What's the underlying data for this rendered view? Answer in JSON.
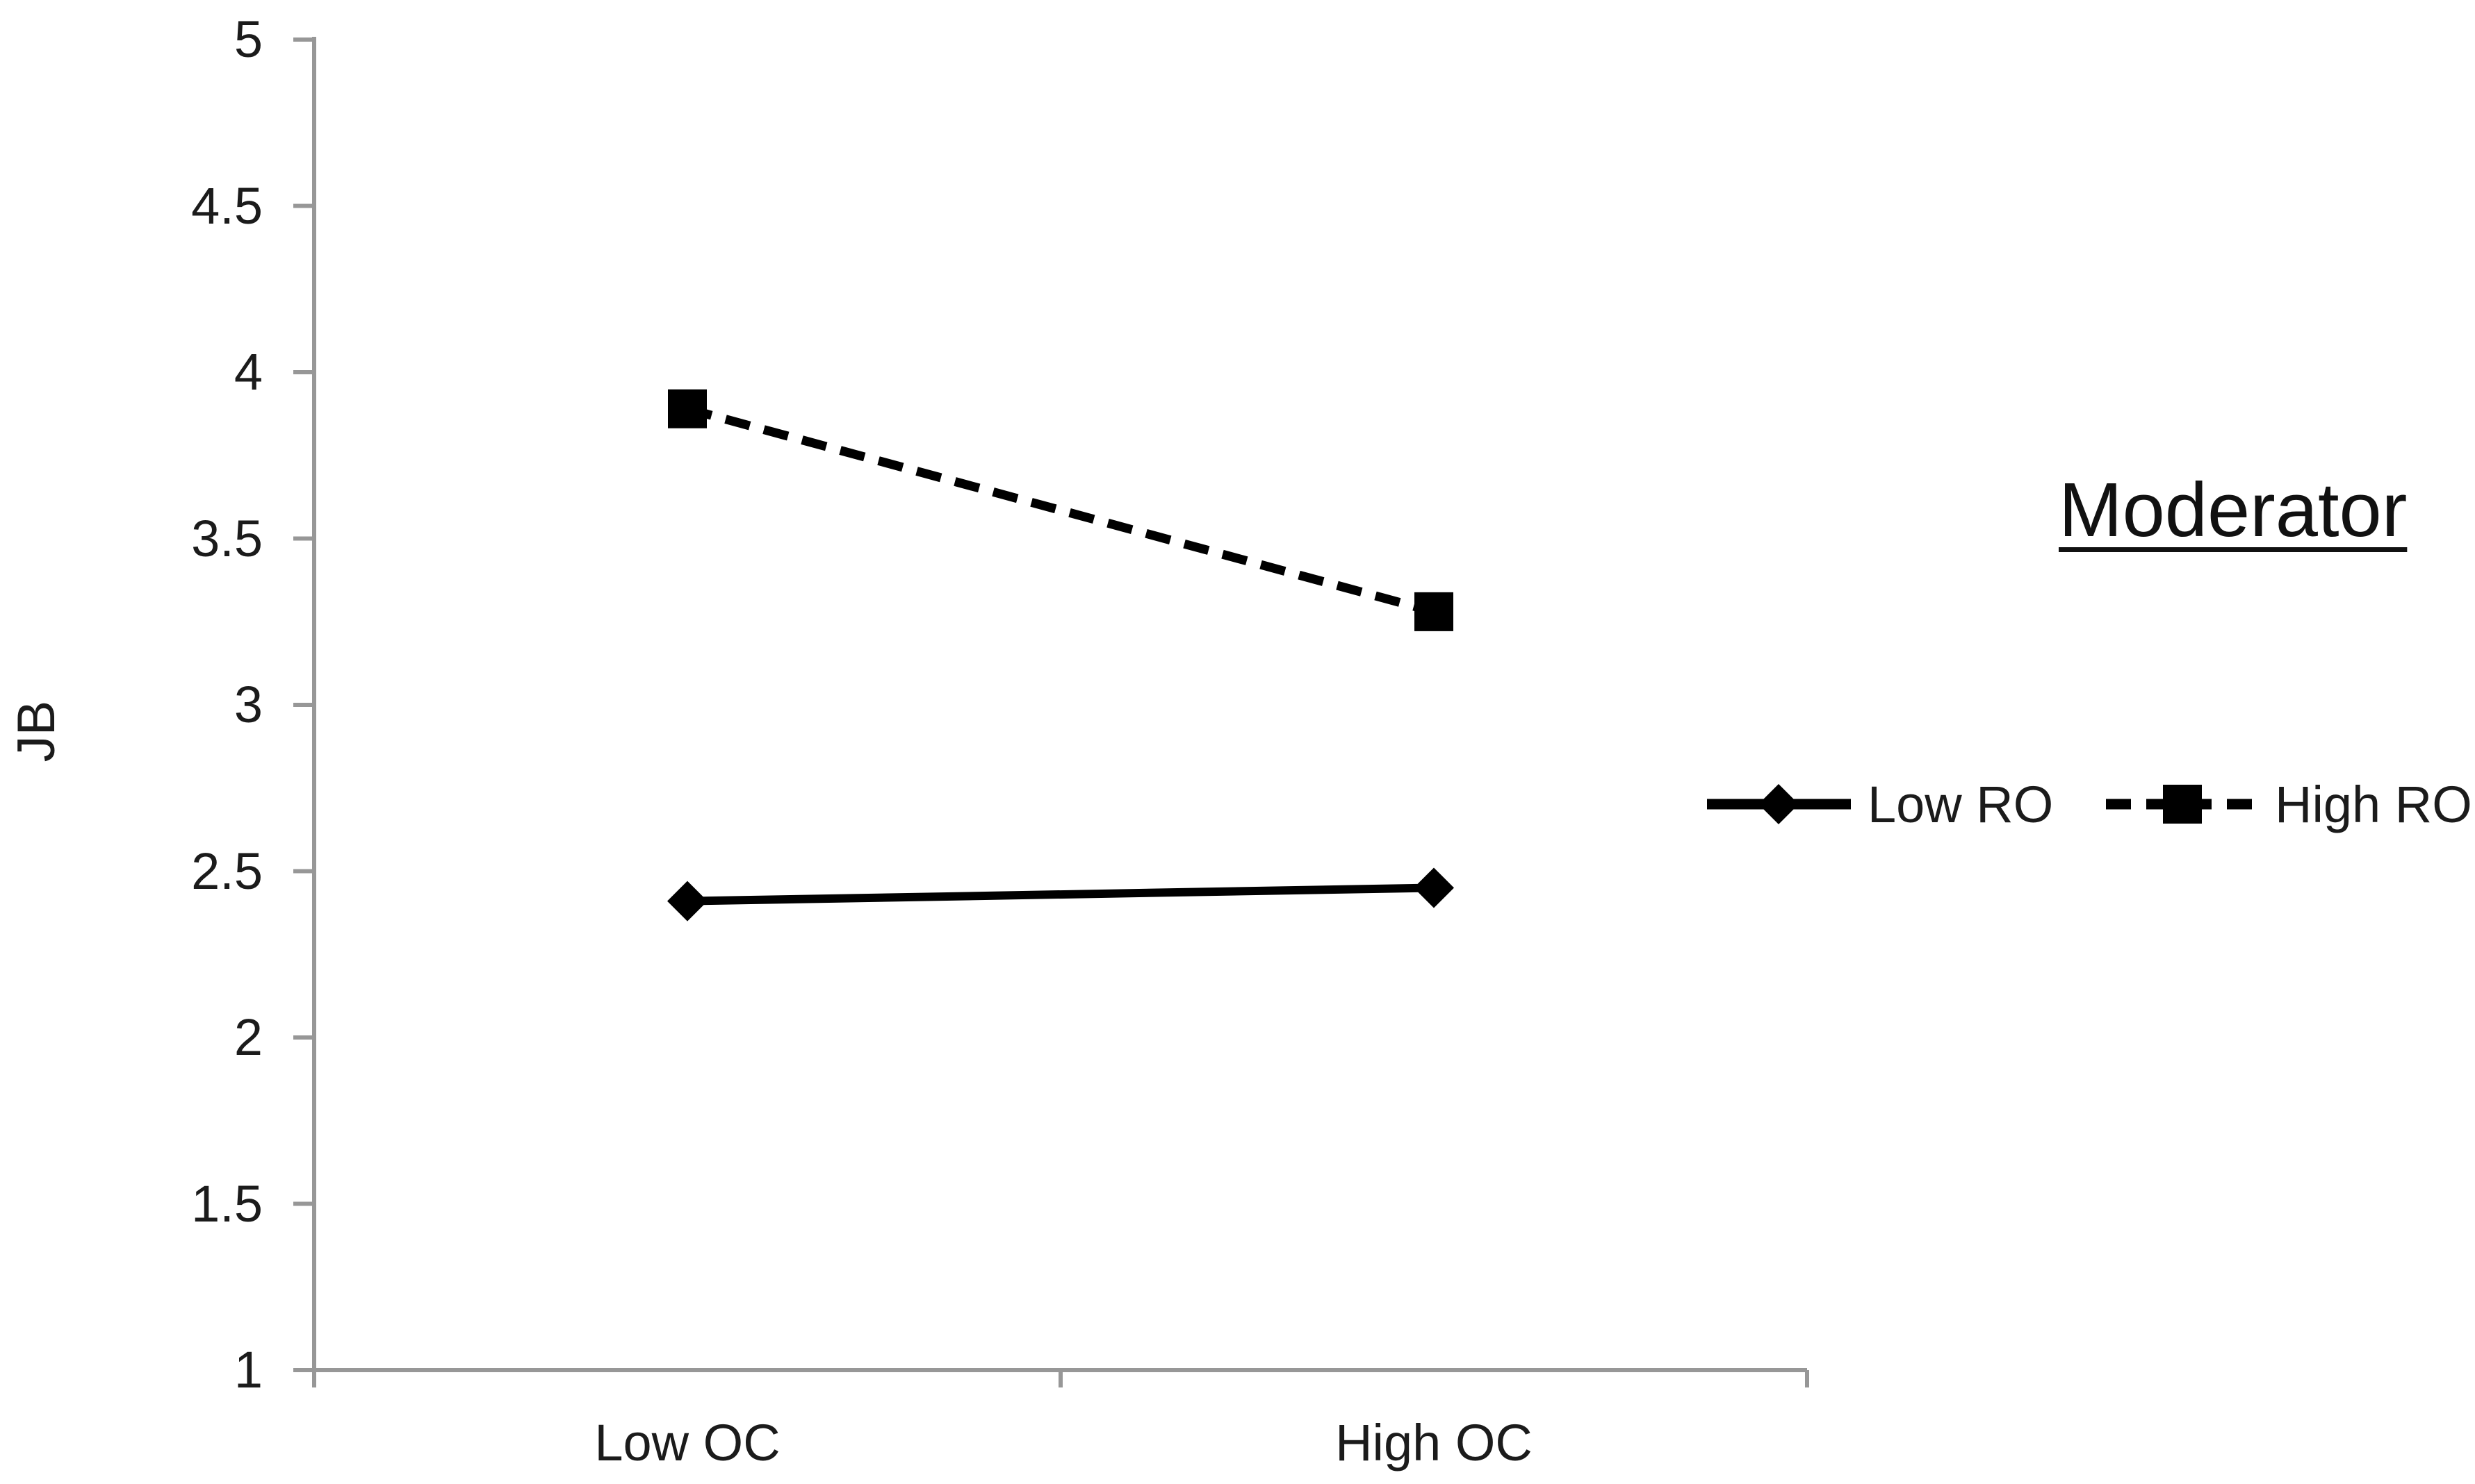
{
  "legend": {
    "title": "Moderator",
    "items": [
      {
        "label": "Low RO",
        "marker": "diamond",
        "line_style": "solid"
      },
      {
        "label": "High RO",
        "marker": "square",
        "line_style": "dashed"
      }
    ]
  },
  "axes": {
    "y_label": "JB",
    "y_tick_labels": [
      "5",
      "4.5",
      "4",
      "3.5",
      "3",
      "2.5",
      "2",
      "1.5",
      "1"
    ],
    "x_category_labels": [
      "Low OC",
      "High OC"
    ]
  },
  "colors": {
    "axis": "#979797",
    "text": "#1b1b1b",
    "series": "#000000",
    "background": "#ffffff"
  },
  "chart_data": {
    "type": "line",
    "title": "",
    "legend_title": "Moderator",
    "categories": [
      "Low OC",
      "High OC"
    ],
    "series": [
      {
        "name": "Low RO",
        "values": [
          2.41,
          2.45
        ],
        "line_style": "solid",
        "marker": "diamond"
      },
      {
        "name": "High RO",
        "values": [
          3.89,
          3.28
        ],
        "line_style": "dashed",
        "marker": "square"
      }
    ],
    "xlabel": "",
    "ylabel": "JB",
    "ylim": [
      1,
      5
    ],
    "ytick_step": 0.5,
    "grid": false,
    "legend_position": "right"
  }
}
